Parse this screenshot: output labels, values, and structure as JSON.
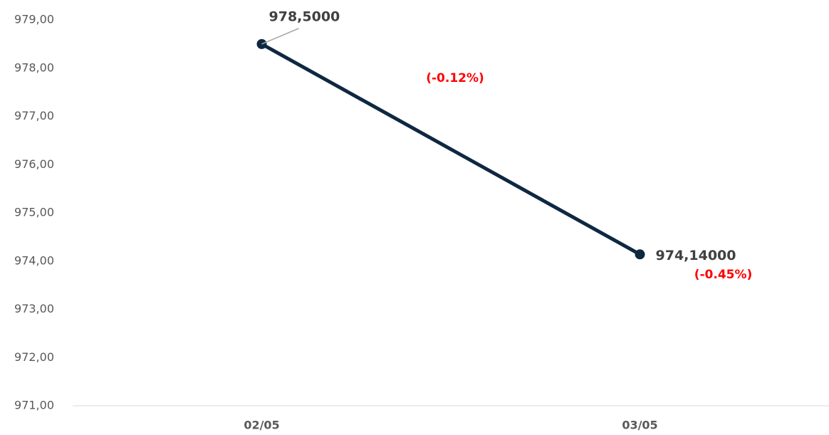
{
  "chart_data": {
    "type": "line",
    "categories": [
      "02/05",
      "03/05"
    ],
    "values": [
      978.5,
      974.14
    ],
    "value_labels": [
      "978,5000",
      "974,14000"
    ],
    "annotations": [
      "(-0.12%)",
      "(-0.45%)"
    ],
    "color": "#0e2841",
    "annotation_color": "#ff0000",
    "ylim": [
      971,
      979
    ],
    "yticks": [
      {
        "value": 971,
        "label": "971,00"
      },
      {
        "value": 972,
        "label": "972,00"
      },
      {
        "value": 973,
        "label": "973,00"
      },
      {
        "value": 974,
        "label": "974,00"
      },
      {
        "value": 975,
        "label": "975,00"
      },
      {
        "value": 976,
        "label": "976,00"
      },
      {
        "value": 977,
        "label": "977,00"
      },
      {
        "value": 978,
        "label": "978,00"
      },
      {
        "value": 979,
        "label": "979,00"
      }
    ],
    "grid": false
  }
}
